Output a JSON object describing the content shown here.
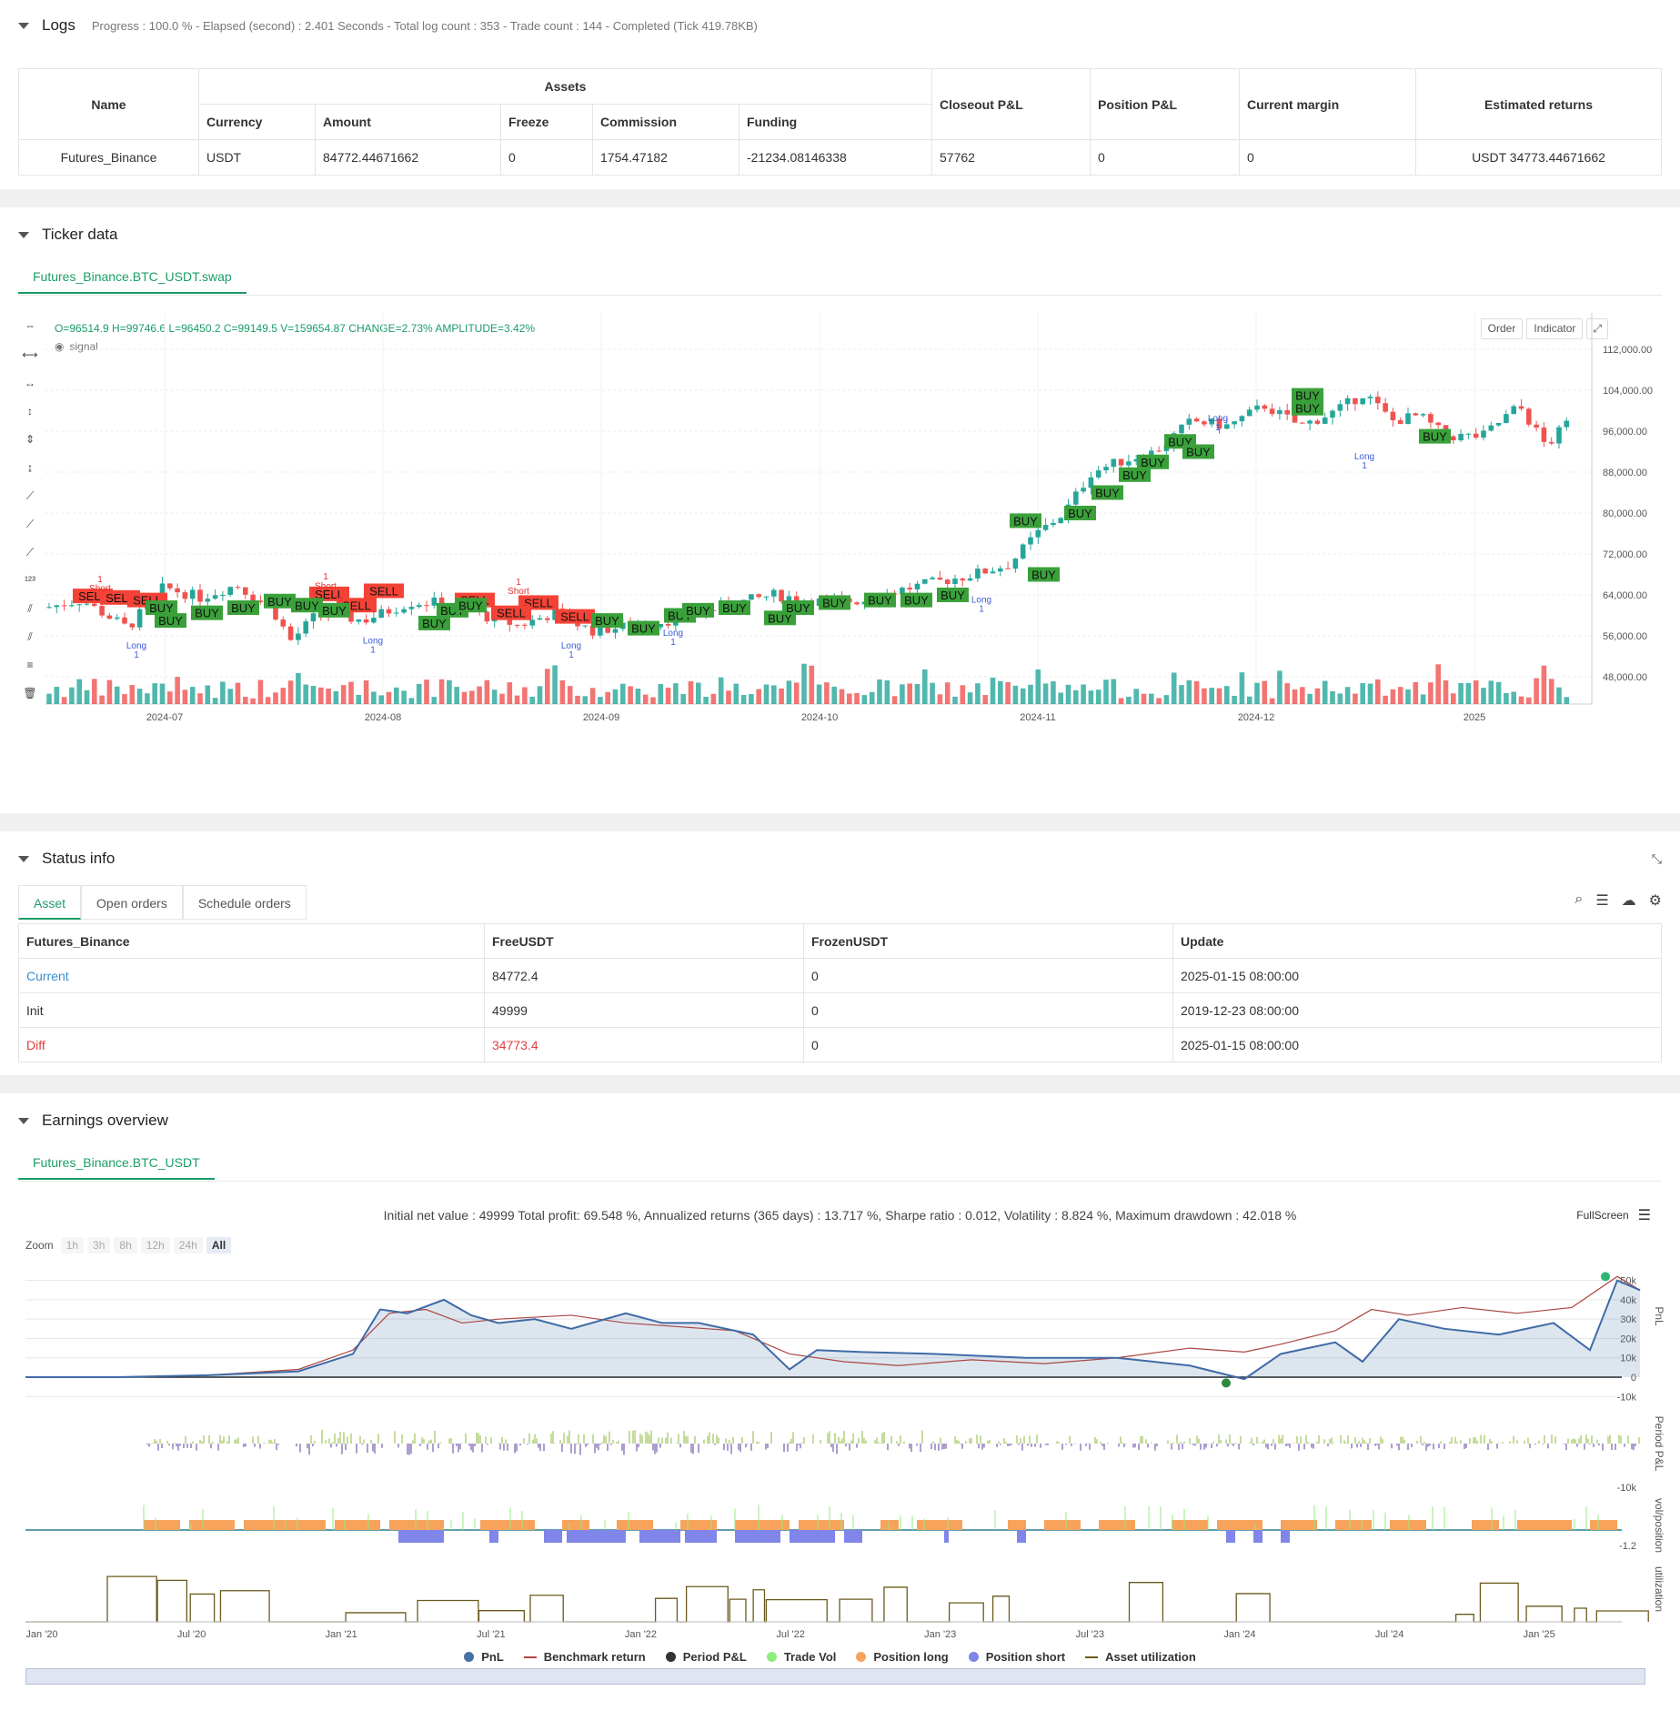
{
  "logs": {
    "title": "Logs",
    "meta": "Progress : 100.0 % - Elapsed (second) : 2.401  Seconds - Total log count : 353 - Trade count : 144 - Completed (Tick 419.78KB)",
    "table": {
      "h_name": "Name",
      "h_assets": "Assets",
      "h_currency": "Currency",
      "h_amount": "Amount",
      "h_freeze": "Freeze",
      "h_commission": "Commission",
      "h_funding": "Funding",
      "h_closeout": "Closeout P&L",
      "h_position": "Position P&L",
      "h_margin": "Current margin",
      "h_est": "Estimated returns",
      "row": {
        "name": "Futures_Binance",
        "currency": "USDT",
        "amount": "84772.44671662",
        "freeze": "0",
        "commission": "1754.47182",
        "funding": "-21234.08146338",
        "closeout": "57762",
        "position": "0",
        "margin": "0",
        "est": "USDT 34773.44671662"
      }
    }
  },
  "ticker": {
    "title": "Ticker data",
    "tab": "Futures_Binance.BTC_USDT.swap",
    "ohlc": "O=96514.9 H=99746.6 L=96450.2 C=99149.5 V=159654.87 CHANGE=2.73% AMPLITUDE=3.42%",
    "signal": "signal",
    "btn_order": "Order",
    "btn_indicator": "Indicator",
    "price_ticks": [
      "112,000.00",
      "104,000.00",
      "96,000.00",
      "88,000.00",
      "80,000.00",
      "72,000.00",
      "64,000.00",
      "56,000.00",
      "48,000.00"
    ],
    "date_ticks": [
      "2024-07",
      "2024-08",
      "2024-09",
      "2024-10",
      "2024-11",
      "2024-12",
      "2025"
    ],
    "colors": {
      "up": "#26a69a",
      "down": "#ef5350",
      "buy": "#3aa13a",
      "sell": "#f44336"
    },
    "marker_labels": {
      "buy": "BUY",
      "sell": "SELL",
      "long": "Long",
      "short": "Short",
      "one": "1"
    }
  },
  "status": {
    "title": "Status info",
    "tabs": [
      "Asset",
      "Open orders",
      "Schedule orders"
    ],
    "headers": [
      "Futures_Binance",
      "FreeUSDT",
      "FrozenUSDT",
      "Update"
    ],
    "rows": [
      [
        "Current",
        "84772.4",
        "0",
        "2025-01-15 08:00:00"
      ],
      [
        "Init",
        "49999",
        "0",
        "2019-12-23 08:00:00"
      ],
      [
        "Diff",
        "34773.4",
        "0",
        "2025-01-15 08:00:00"
      ]
    ]
  },
  "earnings": {
    "title": "Earnings overview",
    "tab": "Futures_Binance.BTC_USDT",
    "summary": "Initial net value : 49999  Total profit: 69.548 %, Annualized returns (365 days) : 13.717 %, Sharpe ratio : 0.012, Volatility : 8.824 %, Maximum drawdown : 42.018 %",
    "fullscreen": "FullScreen",
    "zoom_label": "Zoom",
    "zoom_buttons": [
      "1h",
      "3h",
      "8h",
      "12h",
      "24h",
      "All"
    ],
    "pnl_ticks": [
      "50k",
      "40k",
      "30k",
      "20k",
      "10k",
      "0",
      "-10k"
    ],
    "period_ticks": [
      "-10k"
    ],
    "vol_ticks": [
      "-1.2"
    ],
    "axis_labels": [
      "PnL",
      "Period P&L",
      "vol/position",
      "utilization"
    ],
    "x_ticks": [
      "Jan '20",
      "Jul '20",
      "Jan '21",
      "Jul '21",
      "Jan '22",
      "Jul '22",
      "Jan '23",
      "Jul '23",
      "Jan '24",
      "Jul '24",
      "Jan '25"
    ],
    "legend": [
      {
        "label": "PnL",
        "color": "#4572a7",
        "kind": "dot"
      },
      {
        "label": "Benchmark return",
        "color": "#aa4643",
        "kind": "line"
      },
      {
        "label": "Period P&L",
        "color": "#333333",
        "kind": "dot"
      },
      {
        "label": "Trade Vol",
        "color": "#90ed7d",
        "kind": "dot"
      },
      {
        "label": "Position long",
        "color": "#f7a35c",
        "kind": "dot"
      },
      {
        "label": "Position short",
        "color": "#8085e9",
        "kind": "dot"
      },
      {
        "label": "Asset utilization",
        "color": "#6b5a1e",
        "kind": "line"
      }
    ]
  }
}
